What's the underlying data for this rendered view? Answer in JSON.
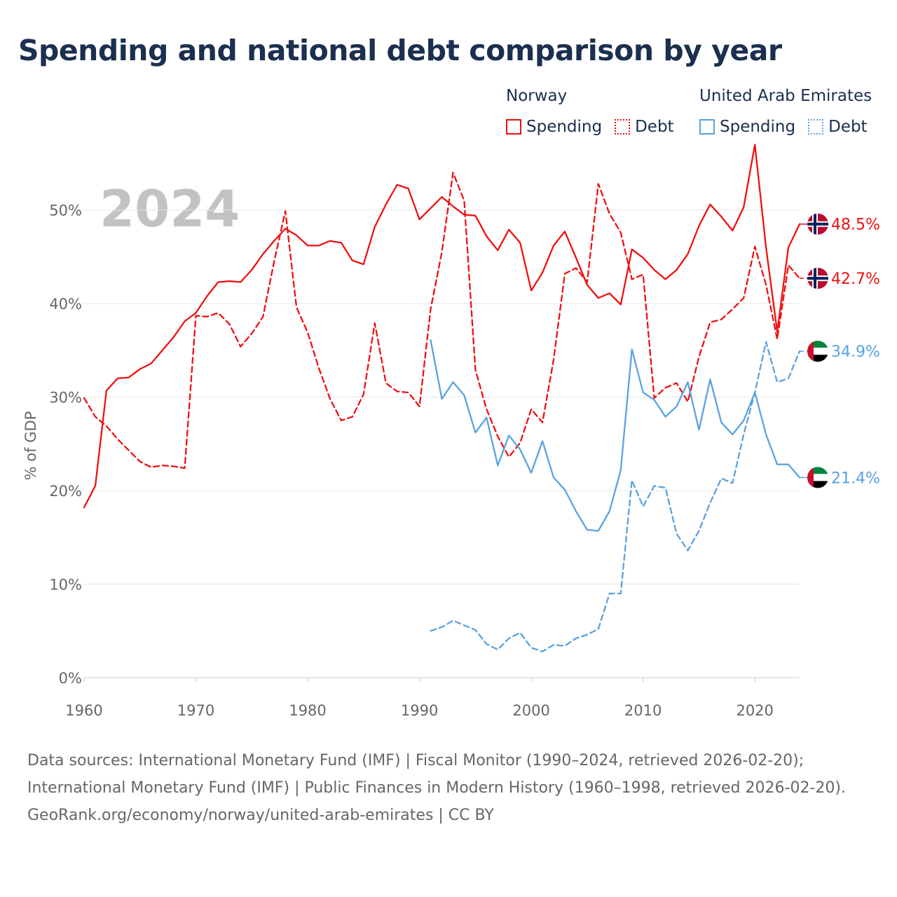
{
  "title": "Spending and national debt comparison by year",
  "legend": {
    "groups": [
      {
        "name": "Norway",
        "color": "#ee1111",
        "items": [
          {
            "label": "Spending",
            "style": "solid"
          },
          {
            "label": "Debt",
            "style": "dashed"
          }
        ]
      },
      {
        "name": "United Arab Emirates",
        "color": "#5aa2e0",
        "items": [
          {
            "label": "Spending",
            "style": "solid"
          },
          {
            "label": "Debt",
            "style": "dashed"
          }
        ]
      }
    ]
  },
  "footer": {
    "sources": "Data sources: International Monetary Fund (IMF) | Fiscal Monitor (1990–2024, retrieved 2026-02-20); International Monetary Fund (IMF) | Public Finances in Modern History (1960–1998, retrieved 2026-02-20).",
    "credit": "GeoRank.org/economy/norway/united-arab-emirates | CC BY"
  },
  "chart_data": {
    "type": "line",
    "title": "Spending and national debt comparison by year",
    "year_label": "2024",
    "ylabel": "% of GDP",
    "xlabel": "",
    "xlim": [
      1960,
      2024
    ],
    "ylim": [
      0,
      55
    ],
    "x_ticks": [
      1960,
      1970,
      1980,
      1990,
      2000,
      2010,
      2020
    ],
    "y_ticks": [
      0,
      10,
      20,
      30,
      40,
      50
    ],
    "y_tick_labels": [
      "0%",
      "10%",
      "20%",
      "30%",
      "40%",
      "50%"
    ],
    "grid": true,
    "series": [
      {
        "name": "Norway Spending",
        "country": "Norway",
        "flag": "norway",
        "color": "#ee1111",
        "dashed": false,
        "end_label": "48.5%",
        "start": 1960,
        "values": [
          18.2,
          20.5,
          30.7,
          32.0,
          32.1,
          33.0,
          33.6,
          35.0,
          36.4,
          38.1,
          39.0,
          40.8,
          42.3,
          42.4,
          42.3,
          43.6,
          45.3,
          46.7,
          48.0,
          47.3,
          46.2,
          46.2,
          46.7,
          46.5,
          44.6,
          44.2,
          48.2,
          50.6,
          52.7,
          52.3,
          49.0,
          50.2,
          51.4,
          50.4,
          49.5,
          49.4,
          47.2,
          45.7,
          47.9,
          46.5,
          41.4,
          43.3,
          46.2,
          47.7,
          44.9,
          42.0,
          40.6,
          41.1,
          39.9,
          45.8,
          44.9,
          43.6,
          42.6,
          43.6,
          45.3,
          48.3,
          50.6,
          49.3,
          47.8,
          50.3,
          57.0,
          46.0,
          37.0,
          46.0,
          48.5
        ]
      },
      {
        "name": "Norway Debt",
        "country": "Norway",
        "flag": "norway",
        "color": "#ee1111",
        "dashed": true,
        "end_label": "42.7%",
        "start": 1960,
        "values": [
          29.9,
          27.9,
          26.9,
          25.5,
          24.3,
          23.1,
          22.5,
          22.7,
          22.6,
          22.4,
          38.7,
          38.6,
          39.0,
          37.8,
          35.4,
          36.8,
          38.6,
          44.5,
          49.9,
          39.6,
          36.9,
          33.1,
          29.8,
          27.5,
          27.9,
          30.3,
          37.9,
          31.5,
          30.6,
          30.5,
          29.0,
          39.4,
          45.5,
          54.0,
          51.0,
          32.9,
          28.7,
          25.8,
          23.6,
          25.1,
          28.7,
          27.3,
          34.0,
          43.2,
          43.8,
          42.3,
          52.8,
          49.6,
          47.6,
          42.6,
          43.1,
          29.9,
          31.0,
          31.5,
          29.5,
          34.3,
          38.0,
          38.3,
          39.4,
          40.6,
          46.1,
          42.0,
          36.2,
          44.1,
          42.7
        ]
      },
      {
        "name": "United Arab Emirates Spending",
        "country": "United Arab Emirates",
        "flag": "uae",
        "color": "#5aa2e0",
        "dashed": false,
        "end_label": "21.4%",
        "start": 1991,
        "values": [
          36.1,
          29.8,
          31.6,
          30.2,
          26.2,
          27.8,
          22.7,
          25.9,
          24.4,
          21.9,
          25.3,
          21.4,
          20.1,
          17.8,
          15.8,
          15.7,
          17.8,
          22.2,
          35.1,
          30.5,
          29.7,
          27.9,
          29.0,
          31.6,
          26.5,
          31.9,
          27.3,
          26.0,
          27.5,
          30.5,
          26.0,
          22.8,
          22.8,
          21.4
        ]
      },
      {
        "name": "United Arab Emirates Debt",
        "country": "United Arab Emirates",
        "flag": "uae",
        "color": "#5aa2e0",
        "dashed": true,
        "end_label": "34.9%",
        "start": 1991,
        "values": [
          5.0,
          5.4,
          6.1,
          5.6,
          5.1,
          3.6,
          3.0,
          4.2,
          4.8,
          3.2,
          2.8,
          3.5,
          3.4,
          4.2,
          4.6,
          5.2,
          9.0,
          9.0,
          21.1,
          18.3,
          20.5,
          20.3,
          15.4,
          13.6,
          15.7,
          18.7,
          21.3,
          20.8,
          26.0,
          30.5,
          35.9,
          31.6,
          32.0,
          34.9
        ]
      }
    ]
  }
}
